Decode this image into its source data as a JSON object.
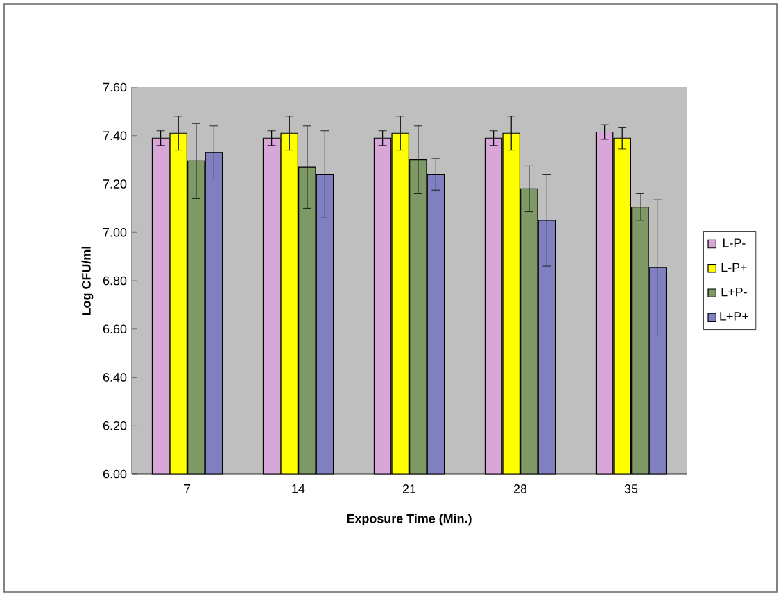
{
  "chart_data": {
    "type": "bar",
    "xlabel": "Exposure Time (Min.)",
    "ylabel": "Log CFU/ml",
    "categories": [
      "7",
      "14",
      "21",
      "28",
      "35"
    ],
    "series": [
      {
        "name": "L-P-",
        "color": "#d9a6d9",
        "values": [
          7.39,
          7.39,
          7.39,
          7.39,
          7.415
        ],
        "errors": [
          0.03,
          0.03,
          0.03,
          0.03,
          0.03
        ]
      },
      {
        "name": "L-P+",
        "color": "#ffff00",
        "values": [
          7.41,
          7.41,
          7.41,
          7.41,
          7.39
        ],
        "errors": [
          0.07,
          0.07,
          0.07,
          0.07,
          0.045
        ]
      },
      {
        "name": "L+P-",
        "color": "#7f9966",
        "values": [
          7.295,
          7.27,
          7.3,
          7.18,
          7.105
        ],
        "errors": [
          0.155,
          0.17,
          0.14,
          0.095,
          0.055
        ]
      },
      {
        "name": "L+P+",
        "color": "#8080c0",
        "values": [
          7.33,
          7.24,
          7.24,
          7.05,
          6.855
        ],
        "errors": [
          0.11,
          0.18,
          0.065,
          0.19,
          0.28
        ]
      }
    ],
    "ylim": [
      6.0,
      7.6
    ],
    "yticks": [
      {
        "value": 6.0,
        "label": "6.00"
      },
      {
        "value": 6.2,
        "label": "6.20"
      },
      {
        "value": 6.4,
        "label": "6.40"
      },
      {
        "value": 6.6,
        "label": "6.60"
      },
      {
        "value": 6.8,
        "label": "6.80"
      },
      {
        "value": 7.0,
        "label": "7.00"
      },
      {
        "value": 7.2,
        "label": "7.20"
      },
      {
        "value": 7.4,
        "label": "7.40"
      },
      {
        "value": 7.6,
        "label": "7.60"
      }
    ],
    "grid": false,
    "legend": "right"
  }
}
